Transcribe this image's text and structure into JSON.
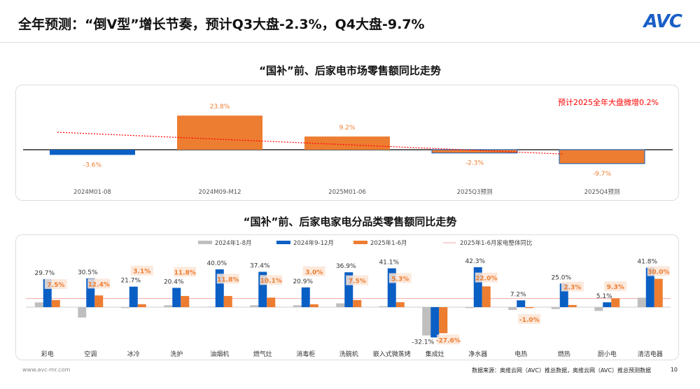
{
  "header": {
    "title": "全年预测：“倒V型”增长节奏，预计Q3大盘-2.3%，Q4大盘-9.7%",
    "logo": "AVC"
  },
  "colors": {
    "blue": "#0a5fc4",
    "orange": "#ed7d31",
    "grey": "#bfbfbf",
    "ref": "#f4a6a6",
    "trend": "#ff0000"
  },
  "chart_data": [
    {
      "type": "bar",
      "title": "“国补”前、后家电市场零售额同比走势",
      "categories": [
        "2024M01-08",
        "2024M09-M12",
        "2025M01-06",
        "2025Q3预测",
        "2025Q4预测"
      ],
      "values": [
        -3.6,
        23.8,
        9.2,
        -2.3,
        -9.7
      ],
      "labels": [
        "-3.6%",
        "23.8%",
        "9.2%",
        "-2.3%",
        "-9.7%"
      ],
      "bar_colors": [
        "blue",
        "orange",
        "orange",
        "orange",
        "orange"
      ],
      "trendline": "linear",
      "annotation": "预计2025全年大盘微增0.2%"
    },
    {
      "type": "bar",
      "title": "“国补”前、后家电家电分品类零售额同比走势",
      "categories": [
        "彩电",
        "空调",
        "冰冷",
        "洗护",
        "油烟机",
        "燃气灶",
        "消毒柜",
        "洗碗机",
        "嵌入式微蒸烤",
        "集成灶",
        "净水器",
        "电热",
        "燃热",
        "厨小电",
        "清洁电器"
      ],
      "series": [
        {
          "name": "2024年1-8月",
          "color": "grey",
          "values": [
            5,
            -11,
            -1,
            2,
            0.5,
            2,
            2,
            4,
            1,
            -30,
            -1,
            -3,
            -2,
            -4,
            10
          ]
        },
        {
          "name": "2024年9-12月",
          "color": "blue",
          "values": [
            29.7,
            30.5,
            21.7,
            20.4,
            40.0,
            37.4,
            20.9,
            36.9,
            41.1,
            -32.1,
            42.3,
            7.2,
            25.0,
            5.1,
            41.8
          ],
          "labels": [
            "29.7%",
            "30.5%",
            "21.7%",
            "20.4%",
            "40.0%",
            "37.4%",
            "20.9%",
            "36.9%",
            "41.1%",
            "-32.1%",
            "42.3%",
            "7.2%",
            "25.0%",
            "5.1%",
            "41.8%"
          ]
        },
        {
          "name": "2025年1-6月",
          "color": "orange",
          "values": [
            7.5,
            12.4,
            3.1,
            11.8,
            11.8,
            10.1,
            3.0,
            7.5,
            5.3,
            -27.6,
            22.0,
            -1.0,
            2.3,
            9.3,
            30.0
          ],
          "labels": [
            "7.5%",
            "12.4%",
            "3.1%",
            "11.8%",
            "11.8%",
            "10.1%",
            "3.0%",
            "7.5%",
            "5.3%",
            "-27.6%",
            "22.0%",
            "-1.0%",
            "2.3%",
            "9.3%",
            "30.0%"
          ]
        }
      ],
      "reference_line": {
        "name": "2025年1-6月家电整体同比",
        "value": 9.2
      },
      "legend": "top"
    }
  ],
  "footer": {
    "website": "www.avc-mr.com",
    "source": "数据来源：奥维云网（AVC）推总数据，奥维云网（AVC）推总预测数据",
    "page": "10"
  }
}
